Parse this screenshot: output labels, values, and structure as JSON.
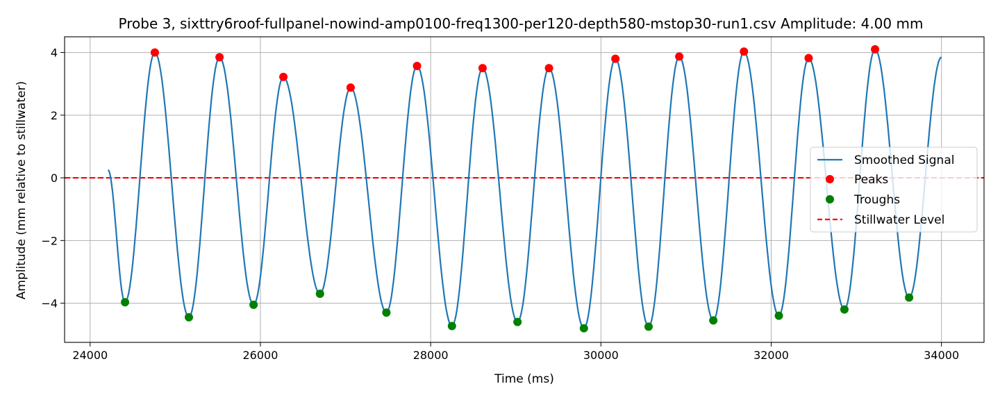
{
  "chart_data": {
    "type": "line",
    "title": "Probe 3, sixttry6roof-fullpanel-nowind-amp0100-freq1300-per120-depth580-mstop30-run1.csv Amplitude: 4.00 mm",
    "xlabel": "Time (ms)",
    "ylabel": "Amplitude (mm relative to stillwater)",
    "xlim": [
      23700,
      34500
    ],
    "ylim": [
      -5.25,
      4.5
    ],
    "x_ticks": [
      24000,
      26000,
      28000,
      30000,
      32000,
      34000
    ],
    "y_ticks": [
      -4,
      -2,
      0,
      2,
      4
    ],
    "x_tick_labels": [
      "24000",
      "26000",
      "28000",
      "30000",
      "32000",
      "34000"
    ],
    "y_tick_labels": [
      "−4",
      "−2",
      "0",
      "2",
      "4"
    ],
    "grid": true,
    "legend_position": "center-right",
    "stillwater_level": 0,
    "colors": {
      "signal": "#1f77b4",
      "peaks": "#ff0000",
      "troughs": "#008000",
      "stillwater": "#ff0000"
    },
    "signal_start": {
      "x": 24210,
      "y": 0.25
    },
    "signal_end": {
      "x": 34000,
      "y": 3.85
    },
    "series": [
      {
        "name": "Peaks",
        "x": [
          24760,
          25520,
          26270,
          27060,
          27840,
          28610,
          29390,
          30170,
          30920,
          31680,
          32440,
          33220
        ],
        "y": [
          4.0,
          3.85,
          3.22,
          2.88,
          3.57,
          3.5,
          3.5,
          3.8,
          3.87,
          4.03,
          3.82,
          4.1
        ]
      },
      {
        "name": "Troughs",
        "x": [
          24410,
          25160,
          25920,
          26700,
          27480,
          28250,
          29020,
          29800,
          30560,
          31320,
          32090,
          32860,
          33620
        ],
        "y": [
          -3.97,
          -4.45,
          -4.05,
          -3.7,
          -4.3,
          -4.73,
          -4.6,
          -4.8,
          -4.75,
          -4.55,
          -4.4,
          -4.2,
          -3.82
        ]
      }
    ],
    "legend": [
      "Smoothed Signal",
      "Peaks",
      "Troughs",
      "Stillwater Level"
    ]
  }
}
